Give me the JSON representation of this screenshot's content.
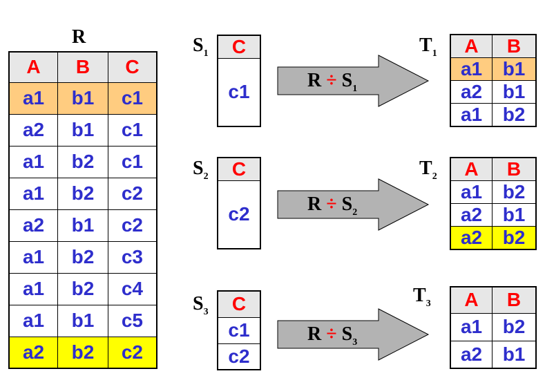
{
  "r": {
    "name": "R",
    "headers": [
      "A",
      "B",
      "C"
    ],
    "rows": [
      {
        "cells": [
          "a1",
          "b1",
          "c1"
        ],
        "highlight": "orange"
      },
      {
        "cells": [
          "a2",
          "b1",
          "c1"
        ],
        "highlight": ""
      },
      {
        "cells": [
          "a1",
          "b2",
          "c1"
        ],
        "highlight": ""
      },
      {
        "cells": [
          "a1",
          "b2",
          "c2"
        ],
        "highlight": ""
      },
      {
        "cells": [
          "a2",
          "b1",
          "c2"
        ],
        "highlight": ""
      },
      {
        "cells": [
          "a1",
          "b2",
          "c3"
        ],
        "highlight": ""
      },
      {
        "cells": [
          "a1",
          "b2",
          "c4"
        ],
        "highlight": ""
      },
      {
        "cells": [
          "a1",
          "b1",
          "c5"
        ],
        "highlight": ""
      },
      {
        "cells": [
          "a2",
          "b2",
          "c2"
        ],
        "highlight": "yellow"
      }
    ]
  },
  "s1": {
    "letter": "S",
    "sub": "1",
    "header": "C",
    "values": [
      "c1"
    ]
  },
  "s2": {
    "letter": "S",
    "sub": "2",
    "header": "C",
    "values": [
      "c2"
    ]
  },
  "s3": {
    "letter": "S",
    "sub": "3",
    "header": "C",
    "values": [
      "c1",
      "c2"
    ]
  },
  "arrows": [
    {
      "left": "R",
      "op": "÷",
      "right": "S",
      "sub": "1"
    },
    {
      "left": "R",
      "op": "÷",
      "right": "S",
      "sub": "2"
    },
    {
      "left": "R",
      "op": "÷",
      "right": "S",
      "sub": "3"
    }
  ],
  "t1": {
    "letter": "T",
    "sub": "1",
    "headers": [
      "A",
      "B"
    ],
    "rows": [
      {
        "cells": [
          "a1",
          "b1"
        ],
        "highlight": "orange"
      },
      {
        "cells": [
          "a2",
          "b1"
        ],
        "highlight": ""
      },
      {
        "cells": [
          "a1",
          "b2"
        ],
        "highlight": ""
      }
    ]
  },
  "t2": {
    "letter": "T",
    "sub": "2",
    "headers": [
      "A",
      "B"
    ],
    "rows": [
      {
        "cells": [
          "a1",
          "b2"
        ],
        "highlight": ""
      },
      {
        "cells": [
          "a2",
          "b1"
        ],
        "highlight": ""
      },
      {
        "cells": [
          "a2",
          "b2"
        ],
        "highlight": "yellow"
      }
    ]
  },
  "t3": {
    "letter": "T",
    "sub": "3",
    "headers": [
      "A",
      "B"
    ],
    "rows": [
      {
        "cells": [
          "a1",
          "b2"
        ],
        "highlight": ""
      },
      {
        "cells": [
          "a2",
          "b1"
        ],
        "highlight": ""
      }
    ]
  },
  "colors": {
    "header_text": "#ff0000",
    "cell_text": "#2e2ecc",
    "header_bg": "#e7e7e7",
    "highlight_orange": "#ffcc80",
    "highlight_yellow": "#ffff00",
    "arrow_fill": "#b3b3b3"
  }
}
